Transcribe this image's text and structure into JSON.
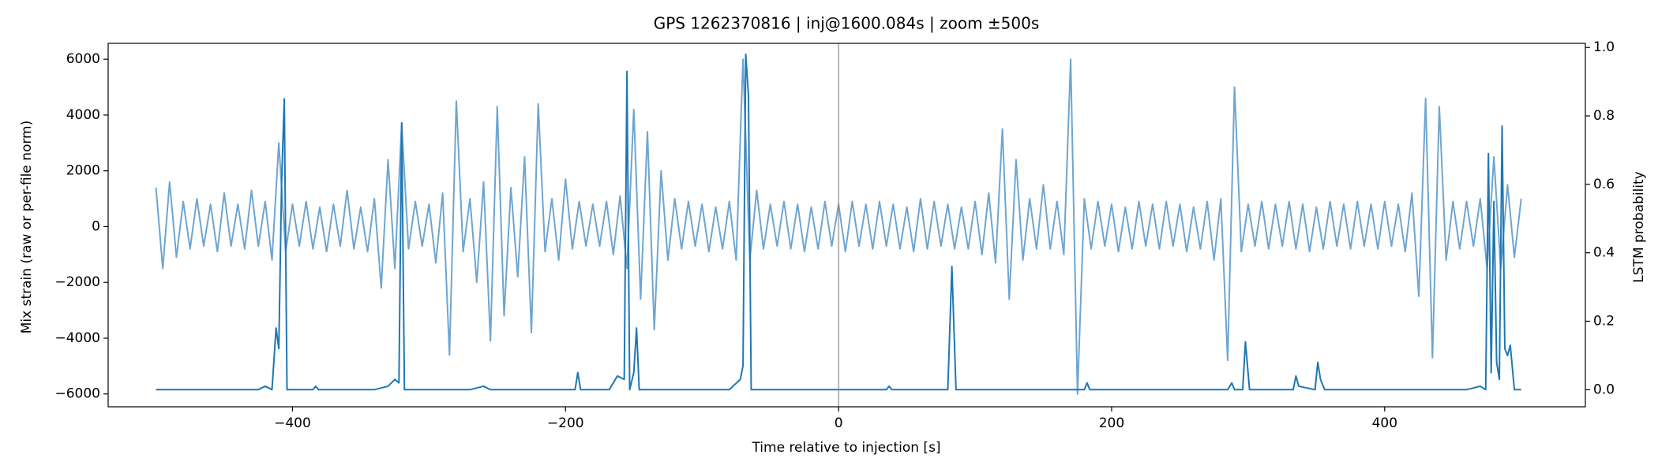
{
  "chart_data": {
    "type": "line",
    "title": "GPS 1262370816 | inj@1600.084s | zoom ±500s",
    "xlabel": "Time relative to injection [s]",
    "ylabel": "Mix strain (raw or per-file norm)",
    "y2label": "LSTM probability",
    "xlim": [
      -535,
      547
    ],
    "ylim": [
      -6460,
      6570
    ],
    "y2lim": [
      -0.05,
      1.012
    ],
    "xticks": [
      {
        "value": -400,
        "label": "−400"
      },
      {
        "value": -200,
        "label": "−200"
      },
      0,
      200,
      400
    ],
    "yticks": [
      {
        "value": -6000,
        "label": "−6000"
      },
      {
        "value": -4000,
        "label": "−4000"
      },
      {
        "value": -2000,
        "label": "−2000"
      },
      0,
      2000,
      4000,
      6000
    ],
    "y2ticks": [
      {
        "value": 0,
        "label": "0.0"
      },
      {
        "value": 0.2,
        "label": "0.2"
      },
      {
        "value": 0.4,
        "label": "0.4"
      },
      {
        "value": 0.6,
        "label": "0.6"
      },
      {
        "value": 0.8,
        "label": "0.8"
      },
      {
        "value": 1,
        "label": "1.0"
      }
    ],
    "vline": 0,
    "series": [
      {
        "color": "#6ea5d1",
        "x": [
          -500,
          -495,
          -490,
          -485,
          -480,
          -475,
          -470,
          -465,
          -460,
          -455,
          -450,
          -445,
          -440,
          -435,
          -430,
          -425,
          -420,
          -415,
          -410,
          -405,
          -400,
          -395,
          -390,
          -385,
          -380,
          -375,
          -370,
          -365,
          -360,
          -355,
          -350,
          -345,
          -340,
          -335,
          -330,
          -325,
          -320,
          -315,
          -310,
          -305,
          -300,
          -295,
          -290,
          -285,
          -280,
          -275,
          -270,
          -265,
          -260,
          -255,
          -250,
          -245,
          -240,
          -235,
          -230,
          -225,
          -220,
          -215,
          -210,
          -205,
          -200,
          -195,
          -190,
          -185,
          -180,
          -175,
          -170,
          -165,
          -160,
          -155,
          -150,
          -145,
          -140,
          -135,
          -130,
          -125,
          -120,
          -115,
          -110,
          -105,
          -100,
          -95,
          -90,
          -85,
          -80,
          -75,
          -70,
          -65,
          -60,
          -55,
          -50,
          -45,
          -40,
          -35,
          -30,
          -25,
          -20,
          -15,
          -10,
          -5,
          0,
          5,
          10,
          15,
          20,
          25,
          30,
          35,
          40,
          45,
          50,
          55,
          60,
          65,
          70,
          75,
          80,
          85,
          90,
          95,
          100,
          105,
          110,
          115,
          120,
          125,
          130,
          135,
          140,
          145,
          150,
          155,
          160,
          165,
          170,
          175,
          180,
          185,
          190,
          195,
          200,
          205,
          210,
          215,
          220,
          225,
          230,
          235,
          240,
          245,
          250,
          255,
          260,
          265,
          270,
          275,
          280,
          285,
          290,
          295,
          300,
          305,
          310,
          315,
          320,
          325,
          330,
          335,
          340,
          345,
          350,
          355,
          360,
          365,
          370,
          375,
          380,
          385,
          390,
          395,
          400,
          405,
          410,
          415,
          420,
          425,
          430,
          435,
          440,
          445,
          450,
          455,
          460,
          465,
          470,
          475,
          480,
          485,
          490,
          495,
          500
        ],
        "values": [
          1400,
          -1500,
          1600,
          -1100,
          900,
          -800,
          1000,
          -700,
          800,
          -900,
          1200,
          -700,
          800,
          -800,
          1300,
          -700,
          900,
          -1200,
          3000,
          -900,
          800,
          -700,
          900,
          -800,
          700,
          -900,
          800,
          -700,
          1300,
          -800,
          700,
          -900,
          1000,
          -2200,
          2400,
          -1500,
          3700,
          -800,
          900,
          -700,
          800,
          -1300,
          1200,
          -4600,
          4500,
          -900,
          1000,
          -2000,
          1600,
          -4100,
          4300,
          -3200,
          1400,
          -1800,
          2500,
          -3800,
          4400,
          -900,
          1000,
          -1200,
          1700,
          -800,
          900,
          -700,
          800,
          -700,
          900,
          -1000,
          1100,
          -1500,
          4200,
          -2600,
          3400,
          -3700,
          2000,
          -1200,
          1000,
          -800,
          900,
          -700,
          800,
          -900,
          700,
          -800,
          900,
          -1200,
          6000,
          -1200,
          1300,
          -800,
          800,
          -700,
          900,
          -800,
          800,
          -900,
          700,
          -800,
          900,
          -700,
          800,
          -900,
          900,
          -700,
          800,
          -800,
          900,
          -700,
          800,
          -800,
          700,
          -900,
          1000,
          -800,
          900,
          -700,
          800,
          -800,
          700,
          -800,
          900,
          -1000,
          1200,
          -1300,
          3500,
          -2600,
          2400,
          -1200,
          1000,
          -800,
          1500,
          -800,
          900,
          -1000,
          6000,
          -6000,
          1000,
          -800,
          900,
          -700,
          800,
          -900,
          700,
          -800,
          900,
          -700,
          800,
          -800,
          900,
          -700,
          800,
          -900,
          700,
          -800,
          900,
          -1200,
          1000,
          -4800,
          5000,
          -900,
          800,
          -700,
          900,
          -800,
          800,
          -700,
          900,
          -800,
          800,
          -900,
          700,
          -800,
          900,
          -700,
          800,
          -800,
          900,
          -700,
          800,
          -800,
          900,
          -700,
          800,
          -900,
          1200,
          -2500,
          4600,
          -4700,
          4300,
          -1200,
          900,
          -800,
          900,
          -700,
          1000,
          -1500,
          2500,
          -1500,
          1500,
          -1100,
          1000
        ]
      },
      {
        "color": "#1f77b4",
        "axis": "y2",
        "x": [
          -500,
          -425,
          -420,
          -415,
          -412,
          -410,
          -408,
          -406,
          -404,
          -385,
          -383,
          -381,
          -340,
          -330,
          -325,
          -322,
          -320,
          -318,
          -270,
          -260,
          -255,
          -193,
          -191,
          -189,
          -168,
          -162,
          -157,
          -155,
          -153,
          -150,
          -148,
          -146,
          -80,
          -72,
          -70,
          -68,
          -66,
          -64,
          35,
          37,
          39,
          80,
          83,
          86,
          180,
          182,
          184,
          285,
          288,
          290,
          296,
          298,
          301,
          333,
          335,
          337,
          349,
          351,
          353,
          356,
          460,
          470,
          474,
          476,
          478,
          480,
          482,
          484,
          486,
          488,
          490,
          492,
          495,
          500
        ],
        "values": [
          0,
          0,
          0.01,
          0,
          0.18,
          0.12,
          0.6,
          0.85,
          0,
          0,
          0.01,
          0,
          0,
          0.01,
          0.03,
          0.02,
          0.78,
          0,
          0,
          0.01,
          0,
          0,
          0.05,
          0,
          0,
          0.04,
          0.03,
          0.93,
          0,
          0.05,
          0.18,
          0,
          0,
          0.03,
          0.07,
          0.98,
          0.86,
          0,
          0,
          0.01,
          0,
          0,
          0.36,
          0,
          0,
          0.02,
          0,
          0,
          0.02,
          0,
          0,
          0.14,
          0,
          0,
          0.04,
          0.01,
          0,
          0.08,
          0.03,
          0,
          0,
          0.01,
          0,
          0.69,
          0.05,
          0.55,
          0.08,
          0.03,
          0.77,
          0.12,
          0.1,
          0.13,
          0,
          0
        ]
      }
    ]
  }
}
